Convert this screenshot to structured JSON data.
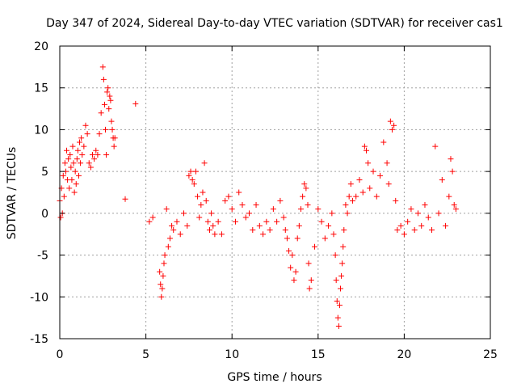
{
  "chart_data": {
    "type": "scatter",
    "title": "Day 347 of 2024, Sidereal Day-to-day VTEC variation (SDTVAR) for receiver cas1",
    "xlabel": "GPS time / hours",
    "ylabel": "SDTVAR / TECUs",
    "xlim": [
      0,
      25
    ],
    "ylim": [
      -15,
      20
    ],
    "x_ticks": [
      0,
      5,
      10,
      15,
      20,
      25
    ],
    "x_tick_labels": [
      "0",
      "5",
      "10",
      "15",
      "20",
      "25"
    ],
    "y_ticks": [
      -15,
      -10,
      -5,
      0,
      5,
      10,
      15,
      20
    ],
    "y_tick_labels": [
      "-15",
      "-10",
      "-5",
      "0",
      "5",
      "10",
      "15",
      "20"
    ],
    "grid": true,
    "marker": "+",
    "series": [
      {
        "name": "cas1",
        "color": "#ff0000",
        "x": [
          0.0,
          0.05,
          0.1,
          0.15,
          0.2,
          0.25,
          0.3,
          0.35,
          0.4,
          0.45,
          0.5,
          0.55,
          0.6,
          0.65,
          0.7,
          0.75,
          0.8,
          0.85,
          0.9,
          0.95,
          1.0,
          1.05,
          1.1,
          1.15,
          1.2,
          1.25,
          1.3,
          1.4,
          1.5,
          1.6,
          1.7,
          1.8,
          1.9,
          2.0,
          2.1,
          2.2,
          2.3,
          2.4,
          2.5,
          2.55,
          2.6,
          2.65,
          2.7,
          2.75,
          2.8,
          2.85,
          2.9,
          2.95,
          3.0,
          3.05,
          3.1,
          3.15,
          3.2,
          3.8,
          4.4,
          5.2,
          5.4,
          5.8,
          5.85,
          5.9,
          5.95,
          6.0,
          6.05,
          6.1,
          6.2,
          6.3,
          6.4,
          6.5,
          6.6,
          6.8,
          7.0,
          7.2,
          7.4,
          7.5,
          7.6,
          7.7,
          7.8,
          7.9,
          8.0,
          8.1,
          8.2,
          8.3,
          8.4,
          8.5,
          8.6,
          8.7,
          8.8,
          8.9,
          9.0,
          9.2,
          9.4,
          9.6,
          9.8,
          10.0,
          10.2,
          10.4,
          10.6,
          10.8,
          11.0,
          11.2,
          11.4,
          11.6,
          11.8,
          12.0,
          12.2,
          12.4,
          12.6,
          12.8,
          13.0,
          13.1,
          13.2,
          13.3,
          13.4,
          13.5,
          13.6,
          13.7,
          13.8,
          13.9,
          14.0,
          14.1,
          14.2,
          14.3,
          14.4,
          14.45,
          14.5,
          14.6,
          14.8,
          15.0,
          15.2,
          15.4,
          15.6,
          15.8,
          15.9,
          16.0,
          16.05,
          16.1,
          16.15,
          16.2,
          16.25,
          16.3,
          16.35,
          16.4,
          16.45,
          16.5,
          16.6,
          16.7,
          16.8,
          16.9,
          17.0,
          17.2,
          17.4,
          17.6,
          17.7,
          17.8,
          17.9,
          18.0,
          18.2,
          18.4,
          18.6,
          18.8,
          19.0,
          19.1,
          19.2,
          19.3,
          19.4,
          19.5,
          19.6,
          19.8,
          20.0,
          20.2,
          20.4,
          20.6,
          20.8,
          21.0,
          21.2,
          21.4,
          21.6,
          21.8,
          22.0,
          22.2,
          22.4,
          22.6,
          22.7,
          22.8,
          22.9,
          23.0
        ],
        "y": [
          1.5,
          -0.5,
          3.0,
          0.0,
          4.5,
          2.0,
          6.0,
          5.0,
          7.5,
          4.0,
          6.5,
          3.0,
          7.0,
          5.5,
          4.0,
          8.0,
          6.0,
          2.5,
          5.0,
          3.5,
          6.5,
          7.5,
          4.5,
          8.5,
          6.0,
          9.0,
          7.0,
          8.0,
          10.5,
          9.5,
          6.0,
          5.5,
          7.0,
          6.5,
          7.5,
          7.0,
          9.5,
          12.0,
          17.5,
          16.0,
          13.0,
          10.0,
          7.0,
          14.5,
          15.0,
          12.5,
          14.0,
          13.5,
          11.0,
          10.0,
          9.0,
          8.0,
          9.0,
          1.7,
          13.1,
          -1.0,
          -0.5,
          -7.0,
          -8.5,
          -10.0,
          -9.0,
          -7.5,
          -6.0,
          -5.0,
          0.5,
          -4.0,
          -3.0,
          -1.5,
          -2.0,
          -1.0,
          -2.5,
          0.0,
          -1.5,
          4.5,
          5.0,
          4.0,
          3.5,
          5.0,
          2.0,
          -0.5,
          1.0,
          2.5,
          6.0,
          1.5,
          -1.0,
          -2.0,
          0.0,
          -1.5,
          -2.5,
          -1.0,
          -2.5,
          1.5,
          2.0,
          0.5,
          -1.0,
          2.5,
          1.0,
          -0.5,
          0.0,
          -2.0,
          1.0,
          -1.5,
          -2.5,
          -1.0,
          -2.0,
          0.5,
          -1.0,
          1.5,
          -0.5,
          -2.0,
          -3.0,
          -4.5,
          -6.5,
          -5.0,
          -8.0,
          -7.0,
          -3.0,
          -1.5,
          0.5,
          2.0,
          3.5,
          3.0,
          1.0,
          -6.0,
          -9.0,
          -8.0,
          -4.0,
          0.5,
          -1.0,
          -3.0,
          -1.5,
          0.0,
          -2.5,
          -5.0,
          -8.0,
          -10.5,
          -12.5,
          -13.5,
          -11.0,
          -9.0,
          -7.5,
          -6.0,
          -4.0,
          -2.0,
          1.0,
          0.0,
          2.0,
          3.5,
          1.5,
          2.0,
          4.0,
          2.5,
          8.0,
          7.5,
          6.0,
          3.0,
          5.0,
          2.0,
          4.5,
          8.5,
          6.0,
          3.5,
          11.0,
          10.0,
          10.5,
          1.5,
          -2.0,
          -1.5,
          -2.5,
          -1.0,
          0.5,
          -2.0,
          0.0,
          -1.5,
          1.0,
          -0.5,
          -2.0,
          8.0,
          0.0,
          4.0,
          -1.5,
          2.0,
          6.5,
          5.0,
          1.0,
          0.5
        ]
      }
    ]
  }
}
